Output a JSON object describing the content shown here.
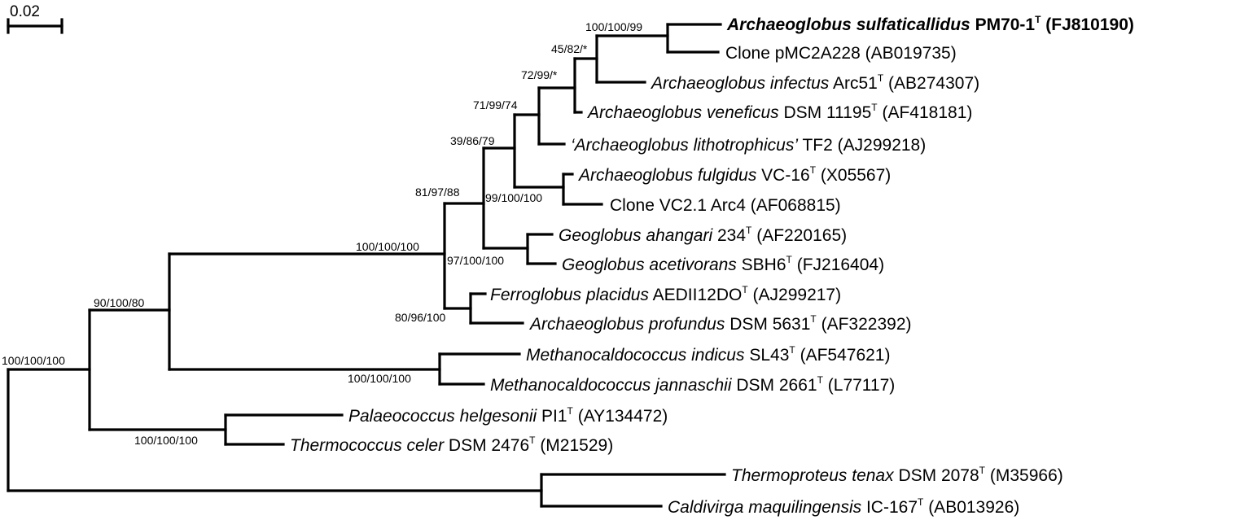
{
  "scale_bar": {
    "label": "0.02"
  },
  "nodes": {
    "root": {
      "support": "100/100/100"
    },
    "n90": {
      "support": "90/100/80"
    },
    "n100a": {
      "support": "100/100/100"
    },
    "n81": {
      "support": "81/97/88"
    },
    "n39": {
      "support": "39/86/79"
    },
    "n71": {
      "support": "71/99/74"
    },
    "n72": {
      "support": "72/99/*"
    },
    "n45": {
      "support": "45/82/*"
    },
    "n100top": {
      "support": "100/100/99"
    },
    "n99": {
      "support": "99/100/100"
    },
    "n97": {
      "support": "97/100/100"
    },
    "n80": {
      "support": "80/96/100"
    },
    "nMeth": {
      "support": "100/100/100"
    },
    "nPalaeo": {
      "support": "100/100/100"
    }
  },
  "taxa": [
    {
      "id": "t1",
      "genus": "Archaeoglobus sulfaticallidus",
      "strain": "PM70-1",
      "type_strain": true,
      "accession": "(FJ810190)",
      "bold": true
    },
    {
      "id": "t2",
      "genus": "",
      "strain": "Clone pMC2A228",
      "type_strain": false,
      "accession": "(AB019735)",
      "bold": false
    },
    {
      "id": "t3",
      "genus": "Archaeoglobus infectus",
      "strain": "Arc51",
      "type_strain": true,
      "accession": "(AB274307)",
      "bold": false
    },
    {
      "id": "t4",
      "genus": "Archaeoglobus veneficus",
      "strain": "DSM 11195",
      "type_strain": true,
      "accession": "(AF418181)",
      "bold": false
    },
    {
      "id": "t5",
      "genus": "‘Archaeoglobus lithotrophicus’",
      "strain": "TF2",
      "type_strain": false,
      "accession": "(AJ299218)",
      "bold": false
    },
    {
      "id": "t6",
      "genus": "Archaeoglobus fulgidus",
      "strain": "VC-16",
      "type_strain": true,
      "accession": "(X05567)",
      "bold": false
    },
    {
      "id": "t7",
      "genus": "",
      "strain": "Clone VC2.1 Arc4",
      "type_strain": false,
      "accession": "(AF068815)",
      "bold": false
    },
    {
      "id": "t8",
      "genus": "Geoglobus ahangari",
      "strain": "234",
      "type_strain": true,
      "accession": "(AF220165)",
      "bold": false
    },
    {
      "id": "t9",
      "genus": "Geoglobus acetivorans",
      "strain": "SBH6",
      "type_strain": true,
      "accession": "(FJ216404)",
      "bold": false
    },
    {
      "id": "t10",
      "genus": "Ferroglobus placidus",
      "strain": "AEDII12DO",
      "type_strain": true,
      "accession": "(AJ299217)",
      "bold": false
    },
    {
      "id": "t11",
      "genus": "Archaeoglobus profundus",
      "strain": "DSM 5631",
      "type_strain": true,
      "accession": "(AF322392)",
      "bold": false
    },
    {
      "id": "t12",
      "genus": "Methanocaldococcus indicus",
      "strain": "SL43",
      "type_strain": true,
      "accession": "(AF547621)",
      "bold": false
    },
    {
      "id": "t13",
      "genus": "Methanocaldococcus jannaschii",
      "strain": "DSM 2661",
      "type_strain": true,
      "accession": "(L77117)",
      "bold": false
    },
    {
      "id": "t14",
      "genus": "Palaeococcus helgesonii",
      "strain": "PI1",
      "type_strain": true,
      "accession": "(AY134472)",
      "bold": false
    },
    {
      "id": "t15",
      "genus": "Thermococcus celer",
      "strain": "DSM 2476",
      "type_strain": true,
      "accession": "(M21529)",
      "bold": false
    },
    {
      "id": "t16",
      "genus": "Thermoproteus tenax",
      "strain": "DSM 2078",
      "type_strain": true,
      "accession": "(M35966)",
      "bold": false
    },
    {
      "id": "t17",
      "genus": "Caldivirga maquilingensis",
      "strain": "IC-167",
      "type_strain": true,
      "accession": "(AB013926)",
      "bold": false
    }
  ]
}
